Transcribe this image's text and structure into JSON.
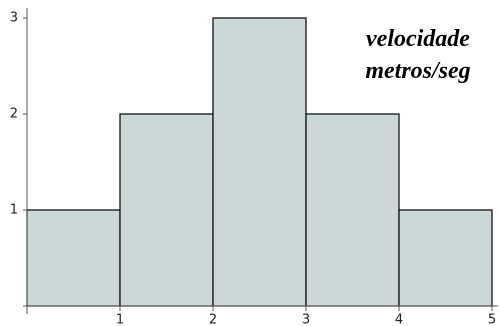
{
  "chart_data": {
    "type": "histogram",
    "annotation": [
      "velocidade",
      "metros/seg"
    ],
    "bins": [
      0,
      1,
      2,
      3,
      4,
      5
    ],
    "values": [
      1,
      2,
      3,
      2,
      1
    ],
    "color": "#ccd8d8",
    "xlim": [
      0,
      5
    ],
    "ylim": [
      0,
      3
    ],
    "xticks": [
      1,
      2,
      3,
      4,
      5
    ],
    "yticks": [
      1,
      2,
      3
    ],
    "grid": false
  }
}
